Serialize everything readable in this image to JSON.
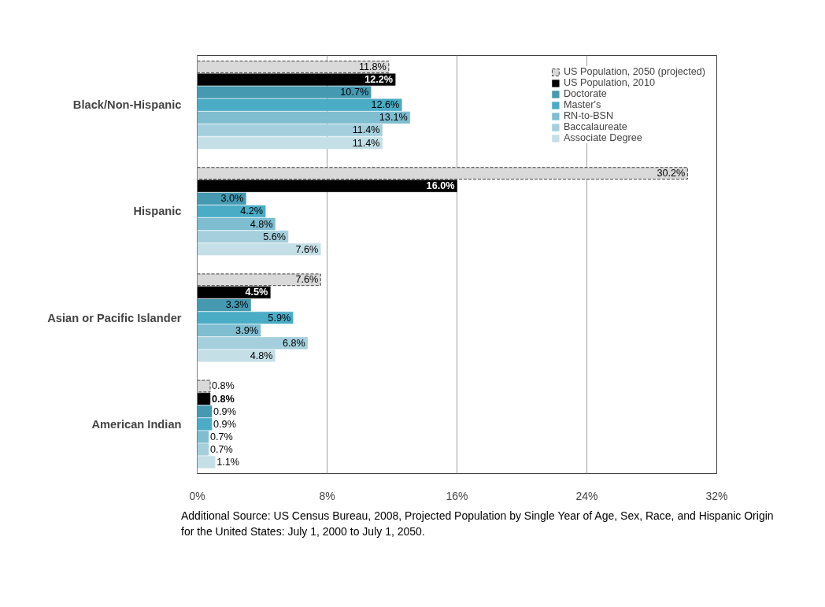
{
  "chart_data": {
    "type": "bar",
    "orientation": "horizontal",
    "categories": [
      "Black/Non-Hispanic",
      "Hispanic",
      "Asian or Pacific Islander",
      "American Indian"
    ],
    "series": [
      {
        "name": "US Population, 2050 (projected)",
        "color": "#d9d9d9",
        "line_style": "dashed",
        "values": [
          11.8,
          30.2,
          7.6,
          0.8
        ]
      },
      {
        "name": "US Population, 2010",
        "color": "#000000",
        "values": [
          12.2,
          16.0,
          4.5,
          0.8
        ]
      },
      {
        "name": "Doctorate",
        "color": "#4599b1",
        "values": [
          10.7,
          3.0,
          3.3,
          0.9
        ]
      },
      {
        "name": "Master's",
        "color": "#4bacc6",
        "values": [
          12.6,
          4.2,
          5.9,
          0.9
        ]
      },
      {
        "name": "RN-to-BSN",
        "color": "#7fbdd0",
        "values": [
          13.1,
          4.8,
          3.9,
          0.7
        ]
      },
      {
        "name": "Baccalaureate",
        "color": "#a5cfdd",
        "values": [
          11.4,
          5.6,
          6.8,
          0.7
        ]
      },
      {
        "name": "Associate Degree",
        "color": "#c5dfe7",
        "values": [
          11.4,
          7.6,
          4.8,
          1.1
        ]
      }
    ],
    "value_labels": [
      [
        "11.8%",
        "30.2%",
        "7.6%",
        "0.8%"
      ],
      [
        "12.2%",
        "16.0%",
        "4.5%",
        "0.8%"
      ],
      [
        "10.7%",
        "3.0%",
        "3.3%",
        "0.9%"
      ],
      [
        "12.6%",
        "4.2%",
        "5.9%",
        "0.9%"
      ],
      [
        "13.1%",
        "4.8%",
        "3.9%",
        "0.7%"
      ],
      [
        "11.4%",
        "5.6%",
        "6.8%",
        "0.7%"
      ],
      [
        "11.4%",
        "7.6%",
        "4.8%",
        "1.1%"
      ]
    ],
    "xlim": [
      0,
      32
    ],
    "xticks": [
      {
        "value": 0,
        "label": "0%"
      },
      {
        "value": 8,
        "label": "8%"
      },
      {
        "value": 16,
        "label": "16%"
      },
      {
        "value": 24,
        "label": "24%"
      },
      {
        "value": 32,
        "label": "32%"
      }
    ],
    "grid": "x",
    "legend": "top right",
    "annotations": [
      "Additional Source: US Census Bureau, 2008, Projected Population by Single Year of Age, Sex, Race, and Hispanic Origin for the United States: July 1, 2000 to July 1, 2050."
    ]
  }
}
